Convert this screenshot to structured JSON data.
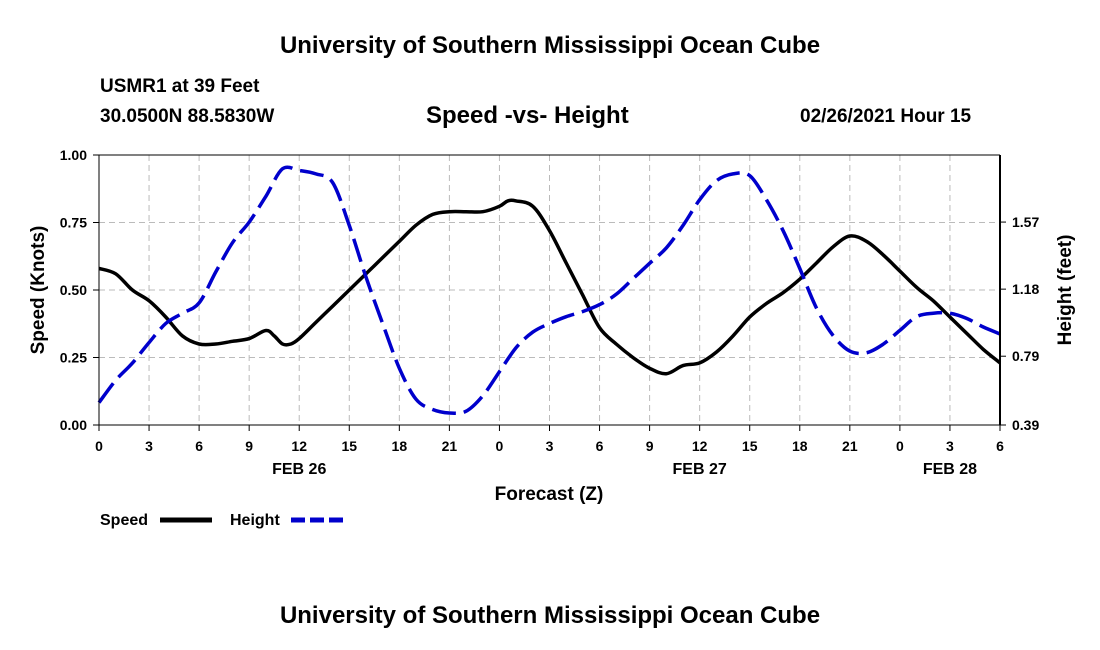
{
  "page": {
    "top_title": "University of Southern Mississippi Ocean Cube",
    "bottom_title": "University of Southern Mississippi Ocean Cube",
    "station": "USMR1 at 39 Feet",
    "coords": "30.0500N 88.5830W",
    "chart_title": "Speed -vs- Height",
    "timestamp": "02/26/2021 Hour 15"
  },
  "legend": {
    "speed_label": "Speed",
    "height_label": "Height"
  },
  "colors": {
    "speed": "#000000",
    "height": "#0000cc",
    "grid": "#bbbbbb"
  },
  "chart_data": {
    "type": "line",
    "title": "Speed -vs- Height",
    "xlabel": "Forecast (Z)",
    "ylabel": "Speed (Knots)",
    "y2label": "Height (feet)",
    "xlim": [
      0,
      54
    ],
    "ylim": [
      0,
      1
    ],
    "y2lim": [
      0.39,
      1.96
    ],
    "x_ticks": [
      0,
      3,
      6,
      9,
      12,
      15,
      18,
      21,
      24,
      27,
      30,
      33,
      36,
      39,
      42,
      45,
      48,
      51,
      54
    ],
    "x_tick_labels": [
      "0",
      "3",
      "6",
      "9",
      "12",
      "15",
      "18",
      "21",
      "0",
      "3",
      "6",
      "9",
      "12",
      "15",
      "18",
      "21",
      "0",
      "3",
      "6"
    ],
    "y_ticks": [
      0,
      0.25,
      0.5,
      0.75,
      1
    ],
    "y_tick_labels": [
      "0.00",
      "0.25",
      "0.50",
      "0.75",
      "1.00"
    ],
    "y2_ticks": [
      0.39,
      0.79,
      1.18,
      1.57
    ],
    "y2_tick_labels": [
      "0.39",
      "0.79",
      "1.18",
      "1.57"
    ],
    "date_labels": [
      {
        "x": 12,
        "label": "FEB 26"
      },
      {
        "x": 36,
        "label": "FEB 27"
      },
      {
        "x": 51,
        "label": "FEB 28"
      }
    ],
    "grid": true,
    "legend_position": "bottom-left",
    "series": [
      {
        "name": "Speed",
        "axis": "left",
        "style": "solid",
        "x": [
          0,
          1,
          2,
          3,
          4,
          5,
          6,
          7,
          8,
          9,
          10,
          10.5,
          11,
          11.5,
          12,
          13,
          14,
          15,
          16,
          17,
          18,
          19,
          20,
          21,
          22,
          23,
          24,
          24.5,
          25,
          26,
          27,
          28,
          29,
          30,
          31,
          32,
          33,
          34,
          35,
          36,
          37,
          38,
          39,
          40,
          41,
          42,
          43,
          44,
          45,
          46,
          47,
          48,
          49,
          50,
          51,
          52,
          53,
          54
        ],
        "y": [
          0.58,
          0.56,
          0.5,
          0.46,
          0.4,
          0.33,
          0.3,
          0.3,
          0.31,
          0.32,
          0.35,
          0.33,
          0.3,
          0.3,
          0.32,
          0.38,
          0.44,
          0.5,
          0.56,
          0.62,
          0.68,
          0.74,
          0.78,
          0.79,
          0.79,
          0.79,
          0.81,
          0.83,
          0.83,
          0.81,
          0.72,
          0.6,
          0.48,
          0.36,
          0.3,
          0.25,
          0.21,
          0.19,
          0.22,
          0.23,
          0.27,
          0.33,
          0.4,
          0.45,
          0.49,
          0.54,
          0.6,
          0.66,
          0.7,
          0.68,
          0.63,
          0.57,
          0.51,
          0.46,
          0.4,
          0.34,
          0.28,
          0.23
        ]
      },
      {
        "name": "Height",
        "axis": "right",
        "style": "dashed",
        "x": [
          0,
          1,
          2,
          3,
          4,
          5,
          6,
          7,
          8,
          9,
          10,
          11,
          12,
          13,
          14,
          15,
          16,
          17,
          18,
          19,
          20,
          21,
          22,
          23,
          24,
          25,
          26,
          27,
          28,
          29,
          30,
          31,
          32,
          33,
          34,
          35,
          36,
          37,
          38,
          39,
          40,
          41,
          42,
          43,
          44,
          45,
          46,
          47,
          48,
          49,
          50,
          51,
          52,
          53,
          54
        ],
        "y": [
          0.52,
          0.65,
          0.75,
          0.87,
          0.98,
          1.04,
          1.1,
          1.28,
          1.45,
          1.57,
          1.72,
          1.88,
          1.87,
          1.85,
          1.8,
          1.55,
          1.25,
          0.98,
          0.72,
          0.54,
          0.48,
          0.46,
          0.47,
          0.56,
          0.7,
          0.84,
          0.93,
          0.98,
          1.02,
          1.05,
          1.09,
          1.15,
          1.24,
          1.33,
          1.42,
          1.55,
          1.7,
          1.81,
          1.85,
          1.84,
          1.7,
          1.52,
          1.3,
          1.07,
          0.91,
          0.82,
          0.81,
          0.86,
          0.94,
          1.02,
          1.04,
          1.04,
          1.01,
          0.96,
          0.92
        ]
      }
    ]
  }
}
